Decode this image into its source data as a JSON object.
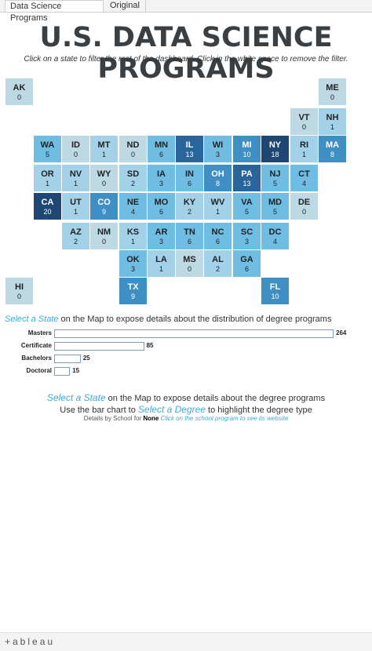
{
  "tabs": [
    {
      "label": "Data Science Programs",
      "active": true
    },
    {
      "label": "Original",
      "active": false
    }
  ],
  "title": "U.S. DATA SCIENCE PROGRAMS",
  "subtitle": "Click on a state to filter the rest of the dashboard. Click in the white space to remove the filter.",
  "colors": {
    "accent_text": "#3fa9d6",
    "scale": [
      "#bdd9e3",
      "#a3d1e8",
      "#6fbde3",
      "#3f8fc5",
      "#29659a",
      "#1e4773"
    ]
  },
  "states": [
    {
      "abbr": "AK",
      "count": 0
    },
    {
      "abbr": "ME",
      "count": 0
    },
    {
      "abbr": "VT",
      "count": 0
    },
    {
      "abbr": "NH",
      "count": 1
    },
    {
      "abbr": "WA",
      "count": 5
    },
    {
      "abbr": "ID",
      "count": 0
    },
    {
      "abbr": "MT",
      "count": 1
    },
    {
      "abbr": "ND",
      "count": 0
    },
    {
      "abbr": "MN",
      "count": 6
    },
    {
      "abbr": "IL",
      "count": 13
    },
    {
      "abbr": "WI",
      "count": 3
    },
    {
      "abbr": "MI",
      "count": 10
    },
    {
      "abbr": "NY",
      "count": 18
    },
    {
      "abbr": "RI",
      "count": 1
    },
    {
      "abbr": "MA",
      "count": 8
    },
    {
      "abbr": "OR",
      "count": 1
    },
    {
      "abbr": "NV",
      "count": 1
    },
    {
      "abbr": "WY",
      "count": 0
    },
    {
      "abbr": "SD",
      "count": 2
    },
    {
      "abbr": "IA",
      "count": 3
    },
    {
      "abbr": "IN",
      "count": 6
    },
    {
      "abbr": "OH",
      "count": 8
    },
    {
      "abbr": "PA",
      "count": 13
    },
    {
      "abbr": "NJ",
      "count": 5
    },
    {
      "abbr": "CT",
      "count": 4
    },
    {
      "abbr": "CA",
      "count": 20
    },
    {
      "abbr": "UT",
      "count": 1
    },
    {
      "abbr": "CO",
      "count": 9
    },
    {
      "abbr": "NE",
      "count": 4
    },
    {
      "abbr": "MO",
      "count": 6
    },
    {
      "abbr": "KY",
      "count": 2
    },
    {
      "abbr": "WV",
      "count": 1
    },
    {
      "abbr": "VA",
      "count": 5
    },
    {
      "abbr": "MD",
      "count": 5
    },
    {
      "abbr": "DE",
      "count": 0
    },
    {
      "abbr": "AZ",
      "count": 2
    },
    {
      "abbr": "NM",
      "count": 0
    },
    {
      "abbr": "KS",
      "count": 1
    },
    {
      "abbr": "AR",
      "count": 3
    },
    {
      "abbr": "TN",
      "count": 6
    },
    {
      "abbr": "NC",
      "count": 6
    },
    {
      "abbr": "SC",
      "count": 3
    },
    {
      "abbr": "DC",
      "count": 4
    },
    {
      "abbr": "OK",
      "count": 3
    },
    {
      "abbr": "LA",
      "count": 1
    },
    {
      "abbr": "MS",
      "count": 0
    },
    {
      "abbr": "AL",
      "count": 2
    },
    {
      "abbr": "GA",
      "count": 6
    },
    {
      "abbr": "HI",
      "count": 0
    },
    {
      "abbr": "TX",
      "count": 9
    },
    {
      "abbr": "FL",
      "count": 10
    }
  ],
  "degree_section": {
    "highlight": "Select a State",
    "rest": " on the Map to expose details about the distribution of degree programs"
  },
  "chart_data": {
    "type": "bar",
    "orientation": "horizontal",
    "categories": [
      "Masters",
      "Certificate",
      "Bachelors",
      "Doctoral"
    ],
    "values": [
      264,
      85,
      25,
      15
    ],
    "xlim": [
      0,
      264
    ]
  },
  "details": {
    "line1": {
      "highlight": "Select a State",
      "rest": " on the Map to expose details about the degree programs"
    },
    "line2": {
      "pre": "Use the bar chart to ",
      "highlight": "Select a Degree",
      "post": " to highlight the degree type"
    },
    "line3": {
      "pre": "Details by School for ",
      "value": "None",
      "hint": " Click on the school program to see its website"
    }
  },
  "footer": {
    "logo": "+ableau",
    "logo_icon": "tableau-cross-icon"
  }
}
